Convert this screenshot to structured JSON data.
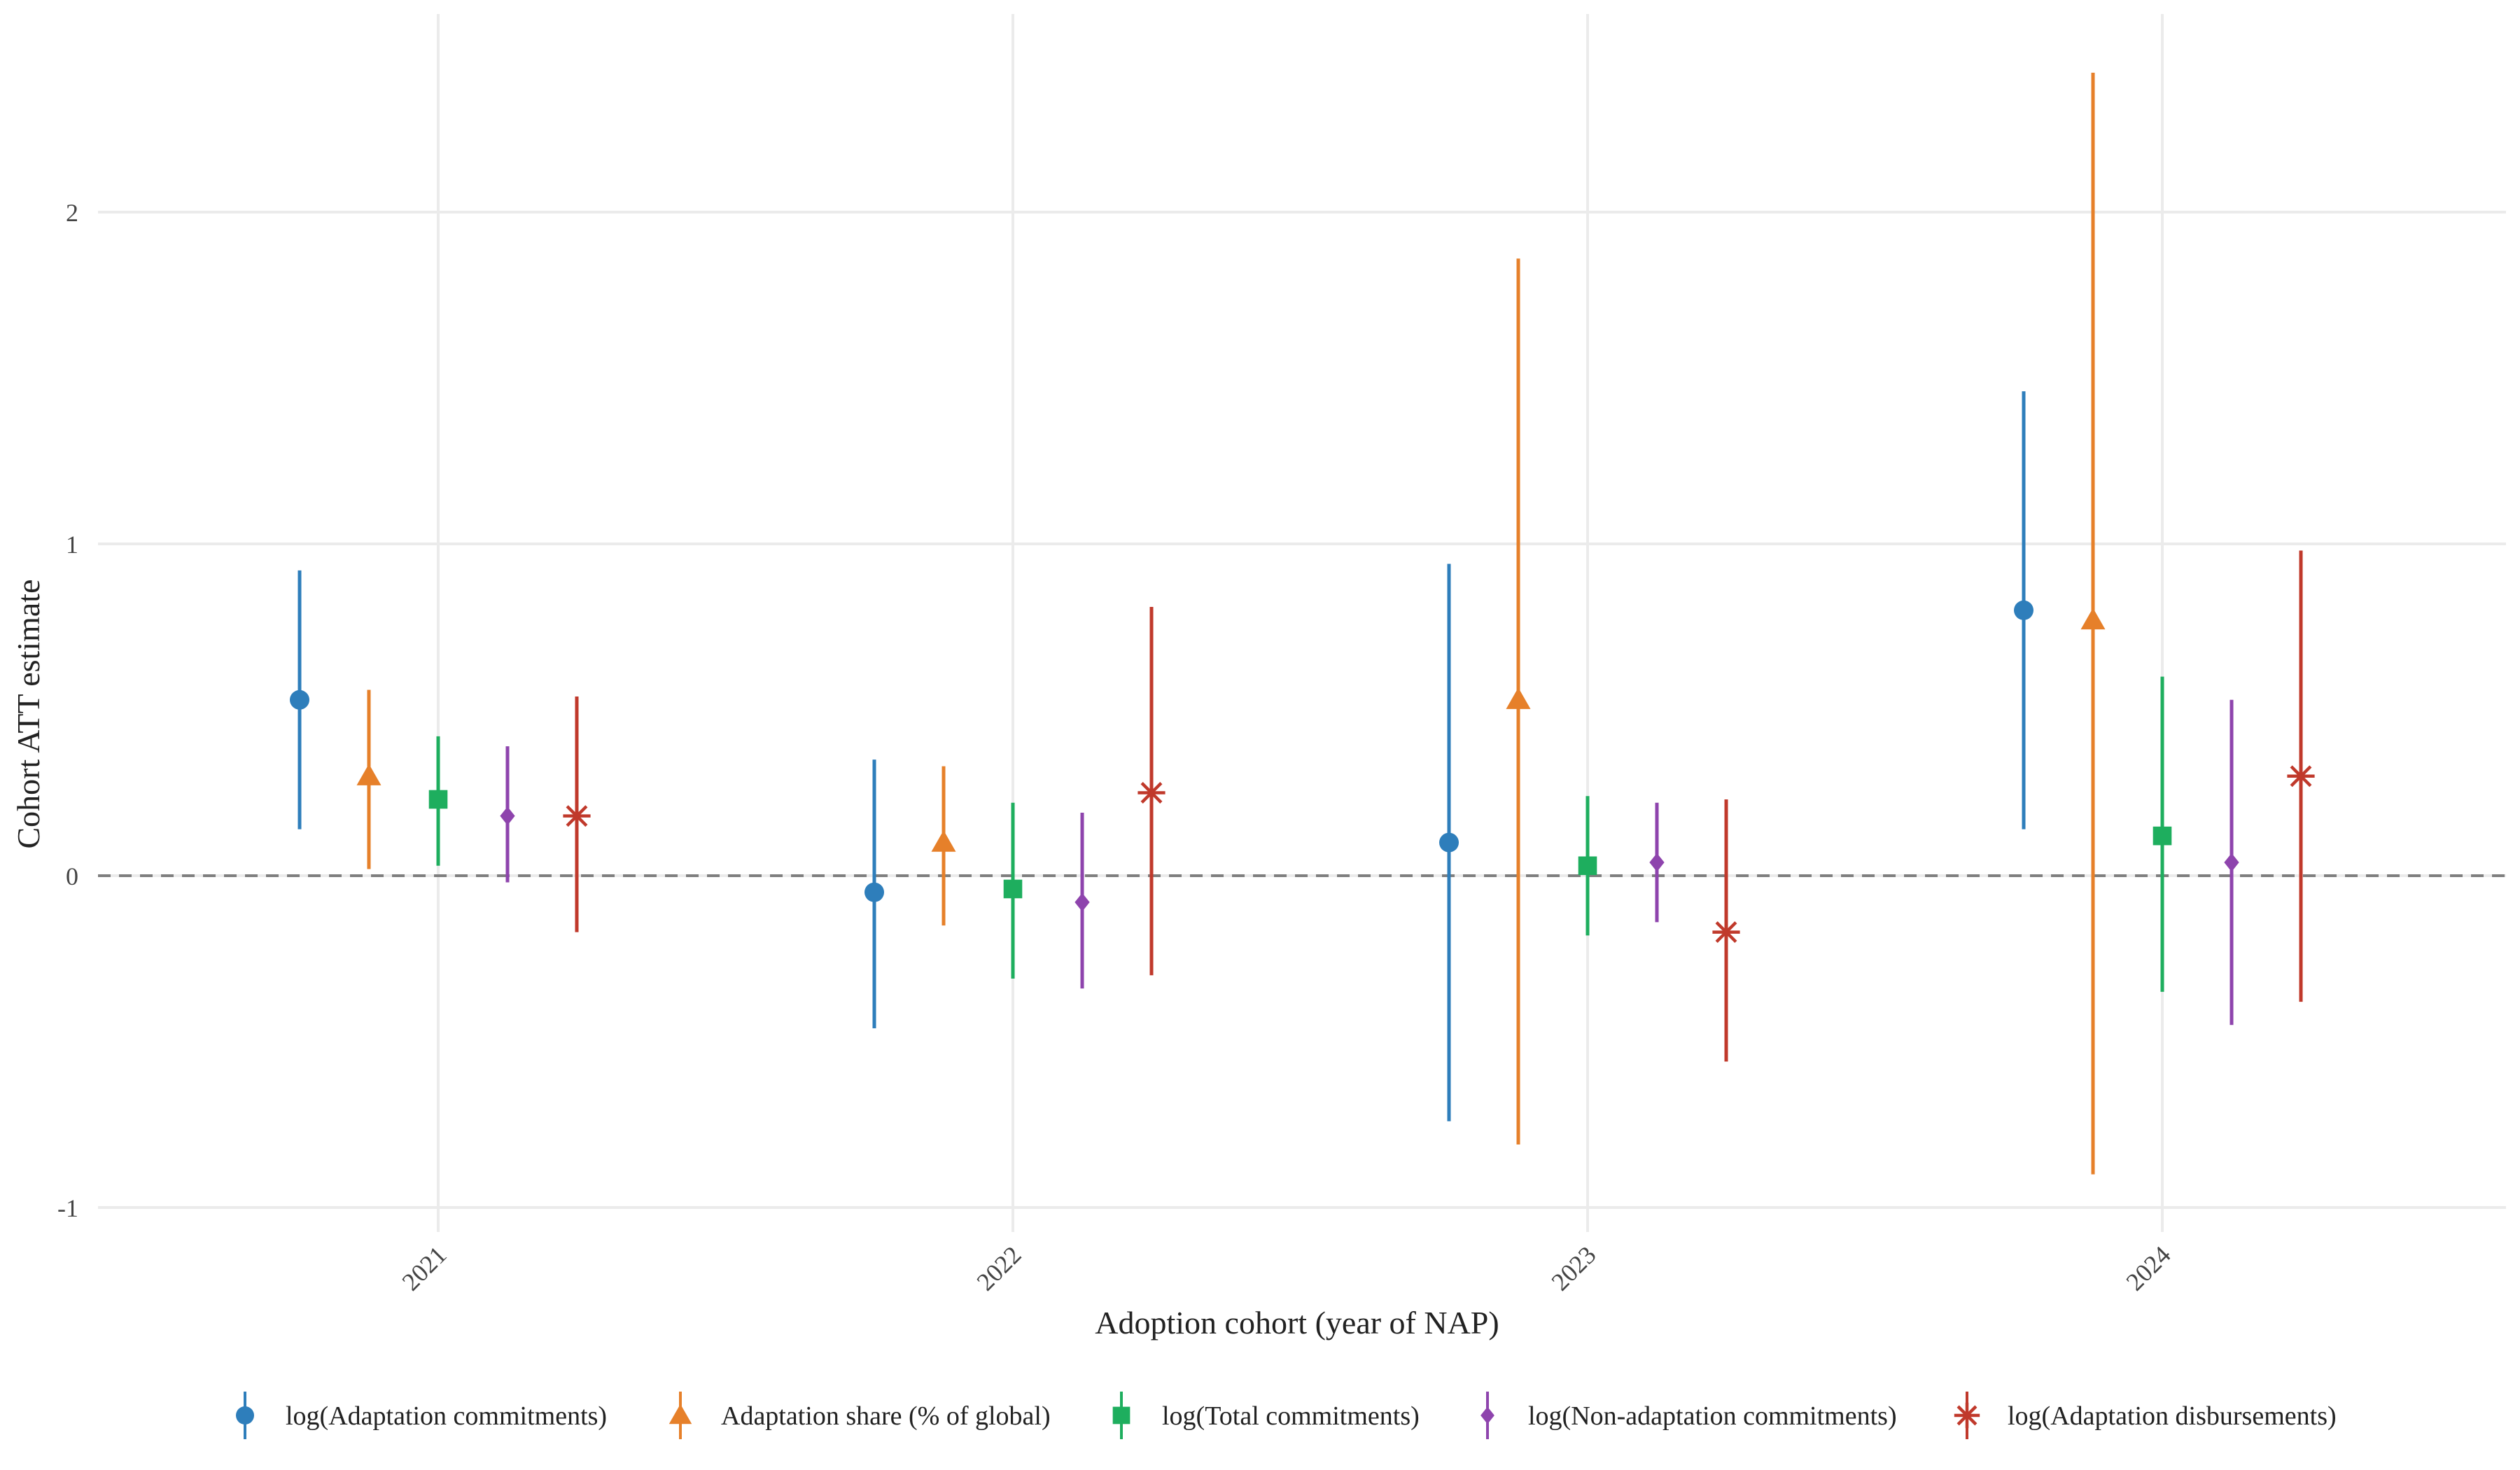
{
  "chart_data": {
    "type": "scatter",
    "subtype": "point-range (estimate with confidence interval)",
    "title": "",
    "xlabel": "Adoption cohort (year of NAP)",
    "ylabel": "Cohort ATT estimate",
    "categories": [
      "2021",
      "2022",
      "2023",
      "2024"
    ],
    "ylim": [
      -1.05,
      2.6
    ],
    "yticks": [
      -1,
      0,
      1,
      2
    ],
    "ytick_labels": [
      "-1",
      "0",
      "1",
      "2"
    ],
    "reference_line": {
      "y": 0,
      "style": "dashed"
    },
    "grid": true,
    "legend_position": "bottom",
    "series": [
      {
        "name": "log(Adaptation commitments)",
        "color": "#2E7EBB",
        "marker": "circle",
        "values": [
          0.53,
          -0.05,
          0.1,
          0.8
        ],
        "lower": [
          0.14,
          -0.46,
          -0.74,
          0.14
        ],
        "upper": [
          0.92,
          0.35,
          0.94,
          1.46
        ]
      },
      {
        "name": "Adaptation share (% of global)",
        "color": "#E6802A",
        "marker": "triangle",
        "values": [
          0.3,
          0.1,
          0.53,
          0.77
        ],
        "lower": [
          0.02,
          -0.15,
          -0.81,
          -0.9
        ],
        "upper": [
          0.56,
          0.33,
          1.86,
          2.42
        ]
      },
      {
        "name": "log(Total commitments)",
        "color": "#1EAE5E",
        "marker": "square",
        "values": [
          0.23,
          -0.04,
          0.03,
          0.12
        ],
        "lower": [
          0.03,
          -0.31,
          -0.18,
          -0.35
        ],
        "upper": [
          0.42,
          0.22,
          0.24,
          0.6
        ]
      },
      {
        "name": "log(Non-adaptation commitments)",
        "color": "#8E44AD",
        "marker": "diamond",
        "values": [
          0.18,
          -0.08,
          0.04,
          0.04
        ],
        "lower": [
          -0.02,
          -0.34,
          -0.14,
          -0.45
        ],
        "upper": [
          0.39,
          0.19,
          0.22,
          0.53
        ]
      },
      {
        "name": "log(Adaptation disbursements)",
        "color": "#C0392B",
        "marker": "asterisk",
        "values": [
          0.18,
          0.25,
          -0.17,
          0.3
        ],
        "lower": [
          -0.17,
          -0.3,
          -0.56,
          -0.38
        ],
        "upper": [
          0.54,
          0.81,
          0.23,
          0.98
        ]
      }
    ]
  }
}
